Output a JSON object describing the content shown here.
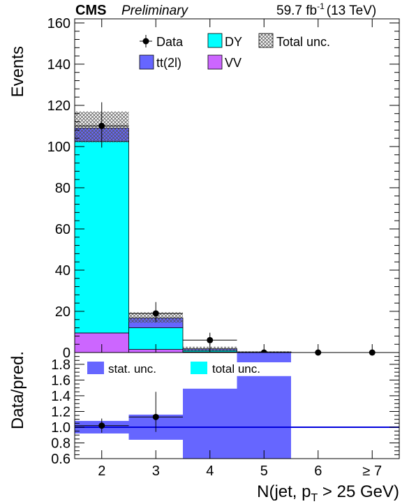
{
  "header": {
    "experiment": "CMS",
    "status": "Preliminary",
    "lumi_value": "59.7 fb",
    "lumi_exp": "-1",
    "energy": "(13 TeV)"
  },
  "chart_data": [
    {
      "type": "bar",
      "stacked": true,
      "ylabel": "Events",
      "ylim": [
        0,
        162
      ],
      "yticks": [
        0,
        20,
        40,
        60,
        80,
        100,
        120,
        140,
        160
      ],
      "categories": [
        "2",
        "3",
        "4",
        "5",
        "6",
        "≥ 7"
      ],
      "series": [
        {
          "name": "VV",
          "color": "#cc66ff",
          "values": [
            9.5,
            1.5,
            0.3,
            0.1,
            0,
            0
          ]
        },
        {
          "name": "DY",
          "color": "#00ffff",
          "values": [
            93,
            10.5,
            0.7,
            0.1,
            0,
            0
          ]
        },
        {
          "name": "tt(2l)",
          "color": "#6666ff",
          "values": [
            6.5,
            4.8,
            0.8,
            0.1,
            0,
            0
          ]
        }
      ],
      "total_unc": {
        "name": "Total unc.",
        "low": [
          102,
          14.5,
          0.8,
          0.1,
          0,
          0
        ],
        "high": [
          117,
          19.5,
          2.8,
          0.6,
          0,
          0
        ]
      },
      "data": {
        "name": "Data",
        "values": [
          110,
          19,
          6,
          0,
          0,
          0
        ],
        "err_low": [
          10.5,
          4.3,
          2.4,
          0,
          0,
          0
        ],
        "err_high": [
          11.5,
          5.5,
          3.6,
          0,
          0,
          0
        ]
      },
      "legend": {
        "position": "top-center"
      },
      "grid": false
    },
    {
      "type": "bar",
      "ylabel": "Data/pred.",
      "xlabel": "N(jet, p",
      "xlabel_sub": "T",
      "xlabel_tail": " > 25 GeV)",
      "ylim": [
        0.6,
        1.95
      ],
      "yticks": [
        "0.6",
        "0.8",
        "1.0",
        "1.2",
        "1.4",
        "1.6",
        "1.8"
      ],
      "categories": [
        "2",
        "3",
        "4",
        "5",
        "6",
        "≥ 7"
      ],
      "reference_line": 1.0,
      "stat_unc": {
        "name": "stat. unc.",
        "color": "#6666ff",
        "low": [
          0.92,
          0.84,
          0.6,
          0.6,
          null,
          null
        ],
        "high": [
          1.08,
          1.16,
          1.49,
          1.65,
          null,
          null
        ],
        "top_only": [
          false,
          false,
          false,
          true,
          false,
          false
        ]
      },
      "total_unc": {
        "name": "total unc.",
        "color": "#00ffff"
      },
      "ratio": {
        "values": [
          1.02,
          1.13,
          null,
          null,
          null,
          null
        ],
        "err_low": [
          0.09,
          0.19,
          0,
          0,
          0,
          0
        ],
        "err_high": [
          0.09,
          0.32,
          0,
          0,
          0,
          0
        ]
      },
      "legend": {
        "position": "top-left"
      },
      "grid": false
    }
  ]
}
